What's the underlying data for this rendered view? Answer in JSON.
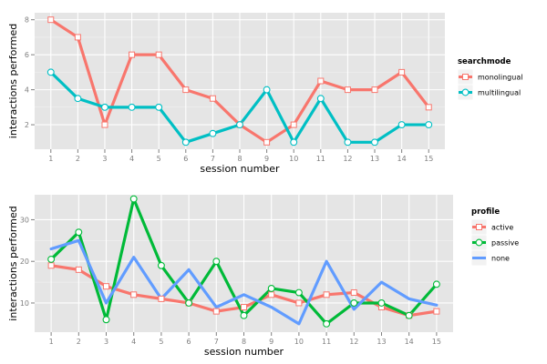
{
  "chart_data": [
    {
      "type": "line",
      "xlabel": "session number",
      "ylabel": "interactions performed",
      "x": [
        1,
        2,
        3,
        4,
        5,
        6,
        7,
        8,
        9,
        10,
        11,
        12,
        13,
        14,
        15
      ],
      "yticks": [
        2,
        4,
        6,
        8
      ],
      "ylim": [
        0.6,
        8.4
      ],
      "grid": true,
      "legend_title": "searchmode",
      "legend_position": "right",
      "series": [
        {
          "name": "monolingual",
          "color": "#F8766D",
          "marker": "square",
          "values": [
            8,
            7,
            2,
            6,
            6,
            4,
            3.5,
            2,
            1,
            2,
            4.5,
            4,
            4,
            5,
            3
          ]
        },
        {
          "name": "multilingual",
          "color": "#00BFC4",
          "marker": "circle",
          "values": [
            5,
            3.5,
            3,
            3,
            3,
            1,
            1.5,
            2,
            4,
            1,
            3.5,
            1,
            1,
            2,
            2
          ]
        }
      ]
    },
    {
      "type": "line",
      "xlabel": "session number",
      "ylabel": "interactions performed",
      "x": [
        1,
        2,
        3,
        4,
        5,
        6,
        7,
        8,
        9,
        10,
        11,
        12,
        13,
        14,
        15
      ],
      "yticks": [
        10,
        20,
        30
      ],
      "ylim": [
        3,
        36
      ],
      "grid": true,
      "legend_title": "profile",
      "legend_position": "right",
      "series": [
        {
          "name": "active",
          "color": "#F8766D",
          "marker": "square",
          "values": [
            19,
            18,
            14,
            12,
            11,
            10,
            8,
            9,
            12,
            10,
            12,
            12.5,
            9,
            7,
            8
          ]
        },
        {
          "name": "passive",
          "color": "#00BA38",
          "marker": "circle",
          "values": [
            20.5,
            27,
            6,
            35,
            19,
            10,
            20,
            7,
            13.5,
            12.5,
            5,
            10,
            10,
            7,
            14.5
          ]
        },
        {
          "name": "none",
          "color": "#619CFF",
          "marker": "none",
          "values": [
            23,
            25,
            10,
            21,
            11,
            18,
            9,
            12,
            9,
            5,
            20,
            8.5,
            15,
            11,
            9.5
          ]
        }
      ]
    }
  ]
}
